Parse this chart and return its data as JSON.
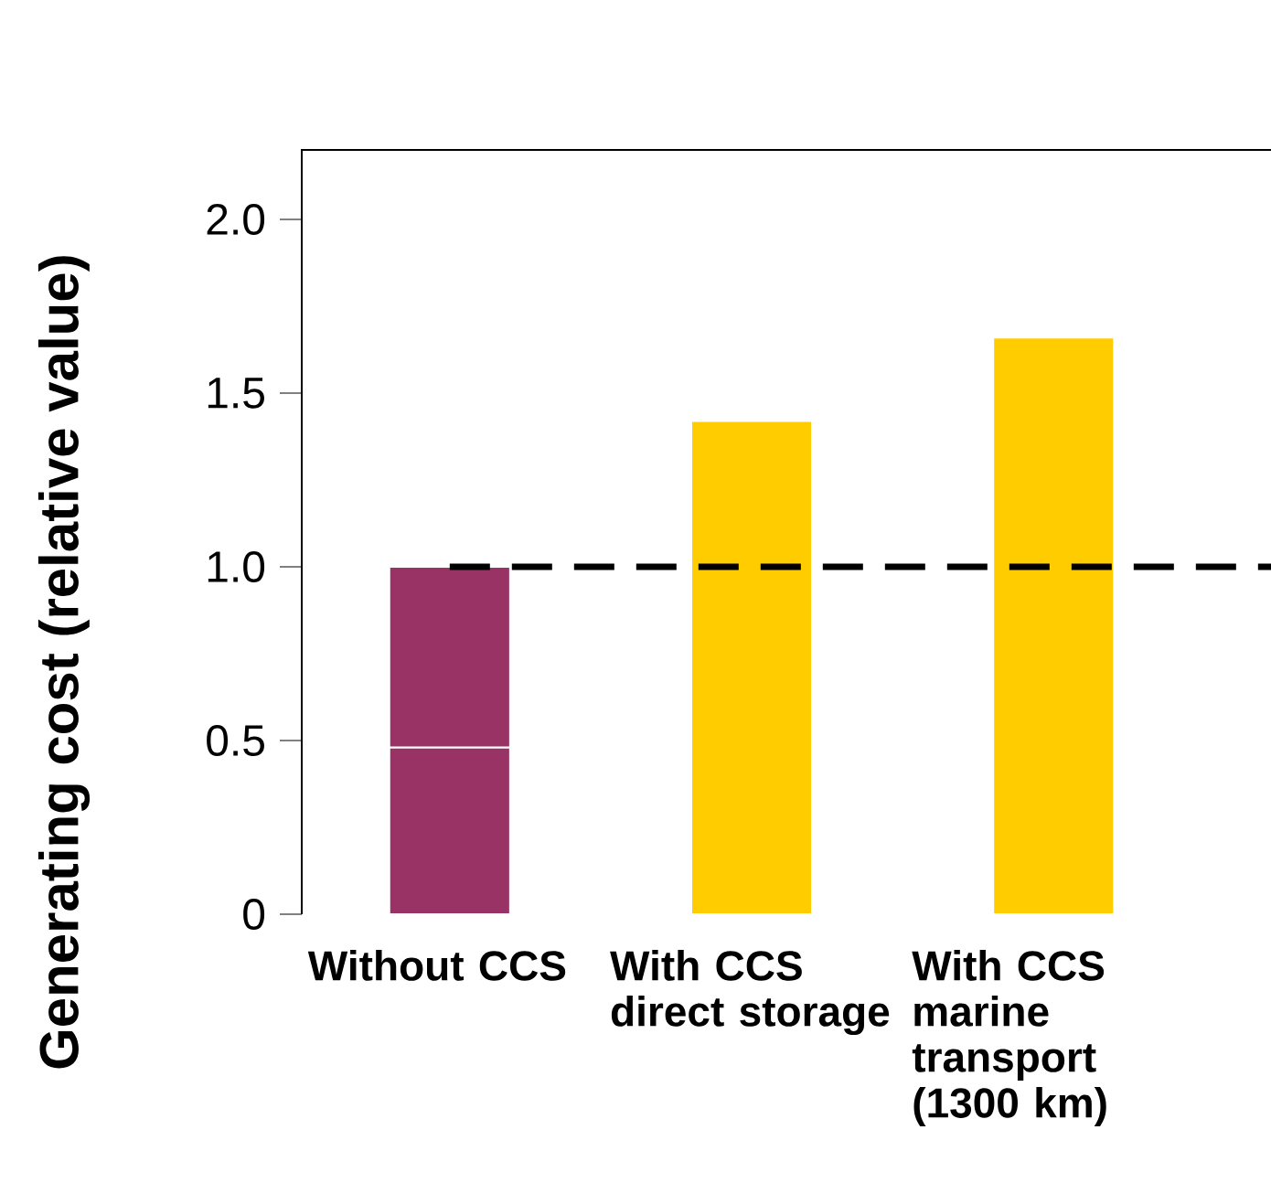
{
  "chart_data": {
    "type": "bar",
    "stacked": true,
    "ylabel": "Generating cost (relative value)",
    "categories": [
      "Without CCS",
      "With CCS direct storage",
      "With CCS marine transport (1300 km)"
    ],
    "series": [
      {
        "colors": [
          "#993366",
          "#ffcc00",
          "#ffcc00"
        ],
        "values": [
          0.48,
          1.42,
          1.66
        ]
      },
      {
        "color": "#993366",
        "values": [
          0.52,
          null,
          null
        ]
      }
    ],
    "ylim": [
      0,
      2.2
    ],
    "yticks": [
      0,
      0.5,
      {
        "value": 1,
        "label": "1.0"
      },
      1.5,
      {
        "value": 2,
        "label": "2.0"
      }
    ],
    "ref_lines": [
      {
        "axis": "y",
        "value": 1,
        "color": "#000000",
        "line_style": "dashed"
      }
    ]
  }
}
